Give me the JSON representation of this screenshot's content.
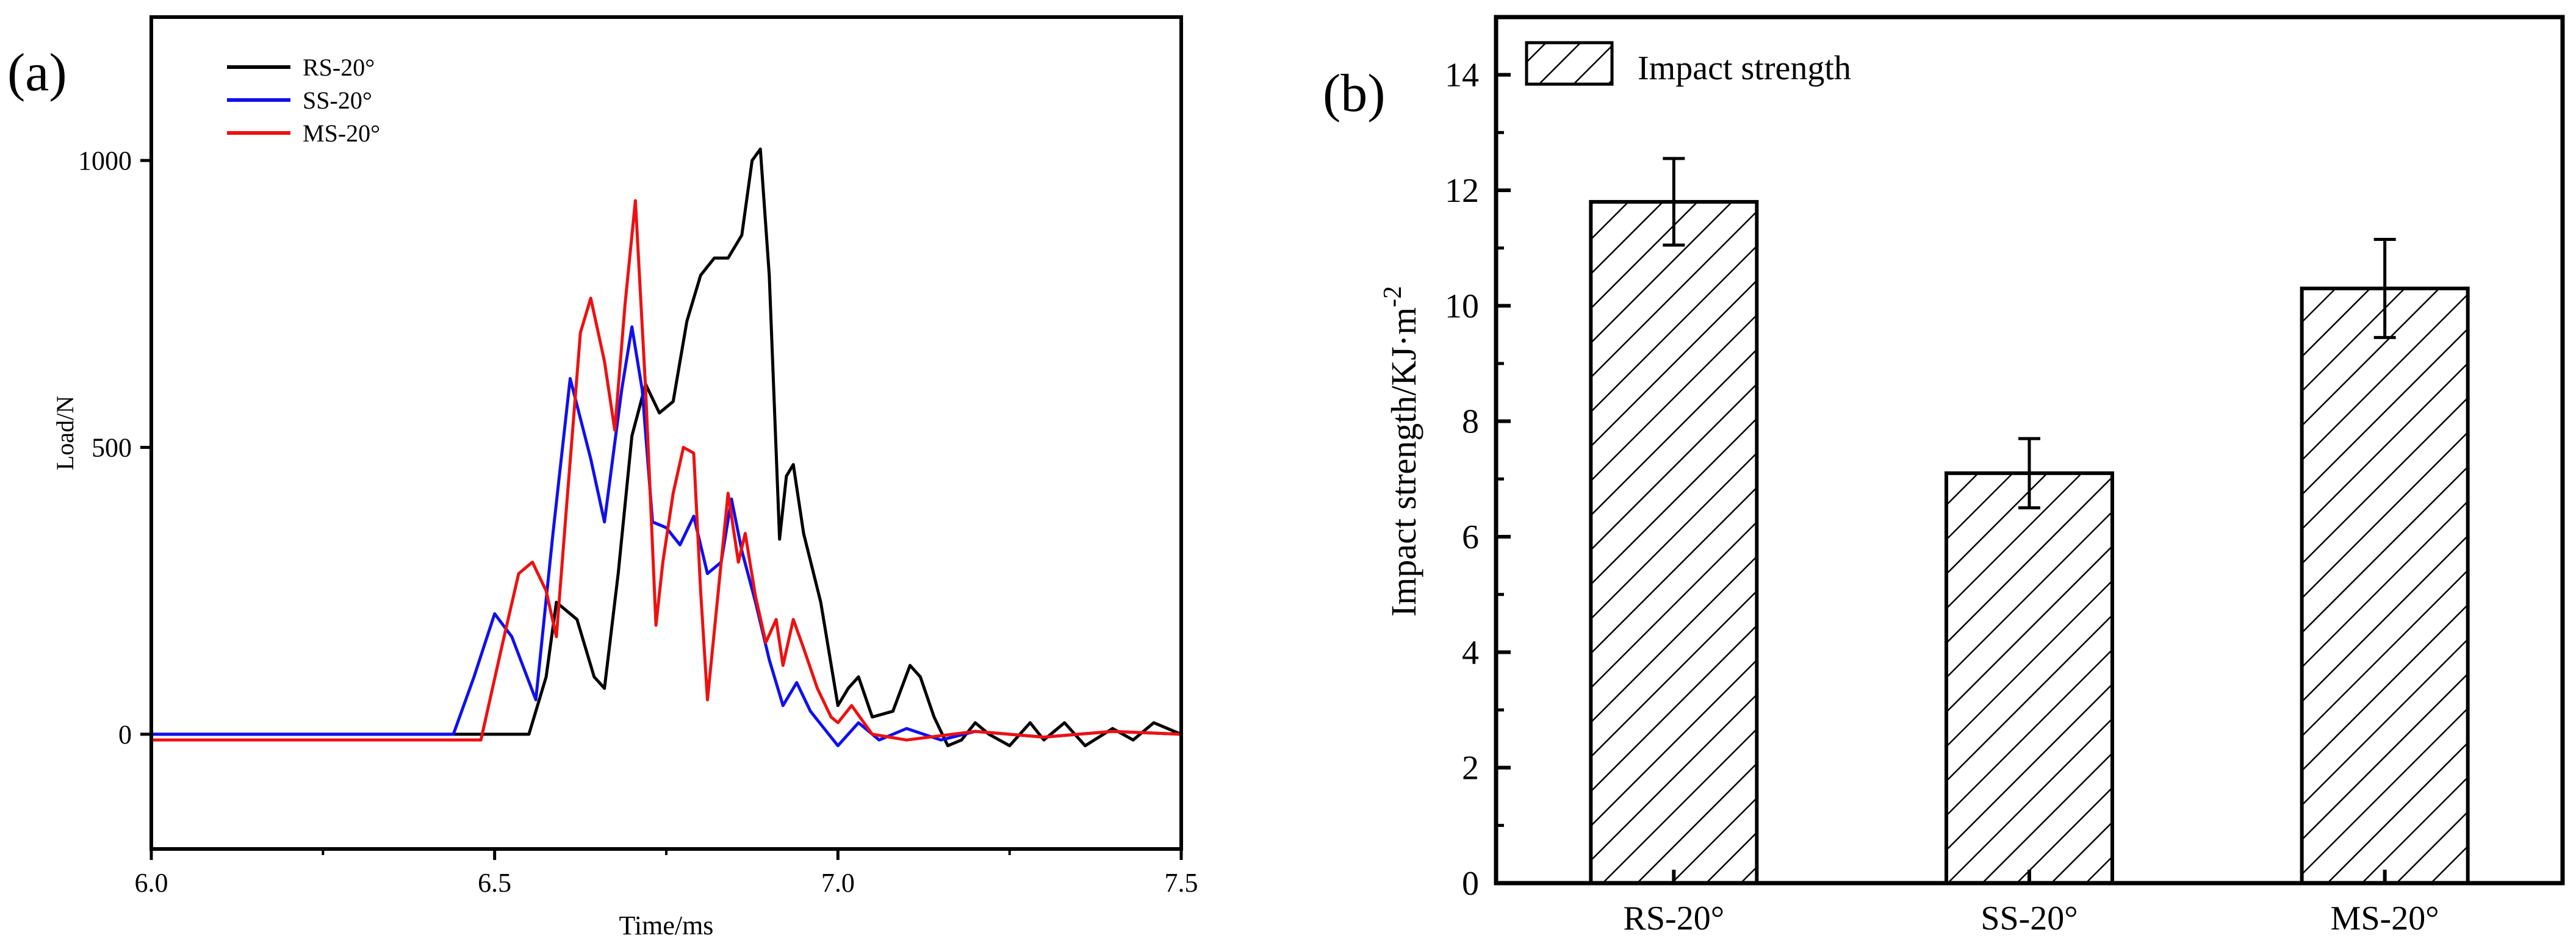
{
  "chart_data": [
    {
      "panel_label": "(a)",
      "type": "line",
      "xlabel": "Time/ms",
      "ylabel": "Load/N",
      "xlim": [
        6.0,
        7.5
      ],
      "ylim": [
        -200,
        1250
      ],
      "xticks": [
        6.0,
        6.5,
        7.0,
        7.5
      ],
      "xtick_labels": [
        "6.0",
        "6.5",
        "7.0",
        "7.5"
      ],
      "yticks": [
        0,
        500,
        1000
      ],
      "ytick_labels": [
        "0",
        "500",
        "1000"
      ],
      "legend_position": "top-left",
      "series": [
        {
          "name": "RS-20°",
          "color": "#000000",
          "x": [
            6.0,
            6.5,
            6.55,
            6.575,
            6.59,
            6.62,
            6.645,
            6.66,
            6.68,
            6.7,
            6.72,
            6.74,
            6.76,
            6.78,
            6.8,
            6.82,
            6.84,
            6.86,
            6.875,
            6.887,
            6.9,
            6.915,
            6.925,
            6.935,
            6.95,
            6.975,
            7.0,
            7.015,
            7.03,
            7.05,
            7.08,
            7.105,
            7.12,
            7.14,
            7.16,
            7.18,
            7.2,
            7.22,
            7.25,
            7.28,
            7.3,
            7.33,
            7.36,
            7.4,
            7.43,
            7.46,
            7.5
          ],
          "y": [
            0,
            0,
            0,
            100,
            230,
            200,
            100,
            80,
            280,
            520,
            610,
            560,
            580,
            720,
            800,
            830,
            830,
            870,
            1000,
            1020,
            800,
            340,
            450,
            470,
            350,
            230,
            50,
            80,
            100,
            30,
            40,
            120,
            100,
            30,
            -20,
            -10,
            20,
            0,
            -20,
            20,
            -10,
            20,
            -20,
            10,
            -10,
            20,
            0
          ]
        },
        {
          "name": "SS-20°",
          "color": "#1010ee",
          "x": [
            6.0,
            6.44,
            6.47,
            6.5,
            6.525,
            6.56,
            6.585,
            6.61,
            6.64,
            6.66,
            6.685,
            6.7,
            6.715,
            6.73,
            6.75,
            6.77,
            6.79,
            6.81,
            6.83,
            6.845,
            6.86,
            6.88,
            6.9,
            6.92,
            6.94,
            6.96,
            6.98,
            7.0,
            7.03,
            7.06,
            7.1,
            7.15,
            7.2,
            7.3,
            7.4,
            7.5
          ],
          "y": [
            0,
            0,
            100,
            210,
            170,
            60,
            350,
            620,
            480,
            370,
            600,
            710,
            600,
            370,
            360,
            330,
            380,
            280,
            300,
            410,
            320,
            230,
            130,
            50,
            90,
            40,
            10,
            -20,
            20,
            -10,
            10,
            -10,
            5,
            -5,
            5,
            0
          ]
        },
        {
          "name": "MS-20°",
          "color": "#ee1010",
          "x": [
            6.0,
            6.48,
            6.51,
            6.535,
            6.555,
            6.575,
            6.59,
            6.605,
            6.625,
            6.64,
            6.66,
            6.675,
            6.69,
            6.705,
            6.72,
            6.735,
            6.745,
            6.76,
            6.775,
            6.79,
            6.8,
            6.81,
            6.825,
            6.84,
            6.855,
            6.865,
            6.88,
            6.895,
            6.91,
            6.92,
            6.935,
            6.95,
            6.97,
            6.99,
            7.0,
            7.02,
            7.05,
            7.1,
            7.2,
            7.3,
            7.4,
            7.5
          ],
          "y": [
            -10,
            -10,
            150,
            280,
            300,
            250,
            170,
            400,
            700,
            760,
            650,
            530,
            750,
            930,
            600,
            190,
            300,
            420,
            500,
            490,
            250,
            60,
            240,
            420,
            300,
            350,
            240,
            160,
            200,
            120,
            200,
            150,
            80,
            30,
            20,
            50,
            0,
            -10,
            5,
            -5,
            5,
            0
          ]
        }
      ]
    },
    {
      "panel_label": "(b)",
      "type": "bar",
      "categories": [
        "RS-20°",
        "SS-20°",
        "MS-20°"
      ],
      "values": [
        11.8,
        7.1,
        10.3
      ],
      "errors": [
        0.75,
        0.6,
        0.85
      ],
      "ylabel": "Impact strength/KJ·m",
      "ylabel_sup": "-2",
      "ylim": [
        0,
        15
      ],
      "yticks": [
        0,
        2,
        4,
        6,
        8,
        10,
        12,
        14
      ],
      "ytick_labels": [
        "0",
        "2",
        "4",
        "6",
        "8",
        "10",
        "12",
        "14"
      ],
      "legend": [
        "Impact strength"
      ],
      "legend_position": "top-left",
      "pattern": "diagonal-hatch"
    }
  ]
}
